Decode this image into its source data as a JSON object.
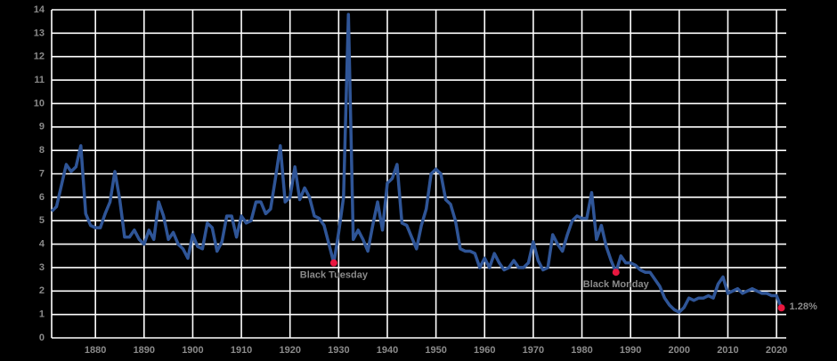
{
  "chart_data": {
    "type": "line",
    "x": [
      1871,
      1872,
      1873,
      1874,
      1875,
      1876,
      1877,
      1878,
      1879,
      1880,
      1881,
      1882,
      1883,
      1884,
      1885,
      1886,
      1887,
      1888,
      1889,
      1890,
      1891,
      1892,
      1893,
      1894,
      1895,
      1896,
      1897,
      1898,
      1899,
      1900,
      1901,
      1902,
      1903,
      1904,
      1905,
      1906,
      1907,
      1908,
      1909,
      1910,
      1911,
      1912,
      1913,
      1914,
      1915,
      1916,
      1917,
      1918,
      1919,
      1920,
      1921,
      1922,
      1923,
      1924,
      1925,
      1926,
      1927,
      1928,
      1929,
      1930,
      1931,
      1932,
      1933,
      1934,
      1935,
      1936,
      1937,
      1938,
      1939,
      1940,
      1941,
      1942,
      1943,
      1944,
      1945,
      1946,
      1947,
      1948,
      1949,
      1950,
      1951,
      1952,
      1953,
      1954,
      1955,
      1956,
      1957,
      1958,
      1959,
      1960,
      1961,
      1962,
      1963,
      1964,
      1965,
      1966,
      1967,
      1968,
      1969,
      1970,
      1971,
      1972,
      1973,
      1974,
      1975,
      1976,
      1977,
      1978,
      1979,
      1980,
      1981,
      1982,
      1983,
      1984,
      1985,
      1986,
      1987,
      1988,
      1989,
      1990,
      1991,
      1992,
      1993,
      1994,
      1995,
      1996,
      1997,
      1998,
      1999,
      2000,
      2001,
      2002,
      2003,
      2004,
      2005,
      2006,
      2007,
      2008,
      2009,
      2010,
      2011,
      2012,
      2013,
      2014,
      2015,
      2016,
      2017,
      2018,
      2019,
      2020,
      2021
    ],
    "series": [
      {
        "color": "#2f5597",
        "values": [
          5.4,
          5.6,
          6.5,
          7.4,
          7.1,
          7.3,
          8.2,
          5.3,
          4.8,
          4.7,
          4.7,
          5.3,
          5.8,
          7.1,
          5.9,
          4.3,
          4.3,
          4.6,
          4.2,
          4.0,
          4.6,
          4.2,
          5.8,
          5.2,
          4.2,
          4.5,
          4.0,
          3.8,
          3.4,
          4.4,
          3.9,
          3.8,
          4.9,
          4.7,
          3.7,
          4.1,
          5.2,
          5.2,
          4.3,
          5.2,
          4.9,
          5.0,
          5.8,
          5.8,
          5.3,
          5.5,
          6.8,
          8.2,
          5.8,
          6.0,
          7.3,
          5.9,
          6.4,
          6.0,
          5.2,
          5.1,
          4.8,
          4.0,
          3.2,
          4.5,
          6.0,
          13.8,
          4.2,
          4.6,
          4.2,
          3.7,
          4.8,
          5.8,
          4.6,
          6.6,
          6.8,
          7.4,
          4.9,
          4.8,
          4.3,
          3.8,
          4.8,
          5.5,
          7.0,
          7.2,
          7.0,
          5.9,
          5.7,
          5.0,
          3.8,
          3.7,
          3.7,
          3.6,
          3.0,
          3.4,
          3.0,
          3.6,
          3.2,
          2.9,
          3.0,
          3.3,
          3.0,
          3.0,
          3.2,
          4.1,
          3.3,
          2.9,
          3.0,
          4.4,
          4.0,
          3.7,
          4.4,
          5.0,
          5.2,
          5.1,
          5.1,
          6.2,
          4.2,
          4.8,
          3.9,
          3.3,
          2.8,
          3.5,
          3.2,
          3.2,
          3.1,
          2.9,
          2.8,
          2.8,
          2.5,
          2.2,
          1.7,
          1.4,
          1.2,
          1.1,
          1.3,
          1.7,
          1.6,
          1.7,
          1.7,
          1.8,
          1.7,
          2.3,
          2.6,
          1.9,
          2.0,
          2.1,
          1.9,
          2.0,
          2.1,
          2.0,
          1.9,
          1.9,
          1.8,
          1.8,
          1.28
        ]
      }
    ],
    "xlim": [
      1871,
      2022
    ],
    "xticks": [
      1880,
      1890,
      1900,
      1910,
      1920,
      1930,
      1940,
      1950,
      1960,
      1970,
      1980,
      1990,
      2000,
      2010,
      2020
    ],
    "ylim": [
      0,
      14
    ],
    "yticks": [
      0,
      1,
      2,
      3,
      4,
      5,
      6,
      7,
      8,
      9,
      10,
      11,
      12,
      13,
      14
    ],
    "grid": true,
    "annotations": [
      {
        "text": "Black Tuesday",
        "x": 1929,
        "y": 3.2,
        "color": "#e8173f"
      },
      {
        "text": "Black Monday",
        "x": 1987,
        "y": 2.8,
        "color": "#e8173f"
      },
      {
        "text": "1.28%",
        "x": 2021,
        "y": 1.28,
        "color": "#e8173f"
      }
    ]
  }
}
